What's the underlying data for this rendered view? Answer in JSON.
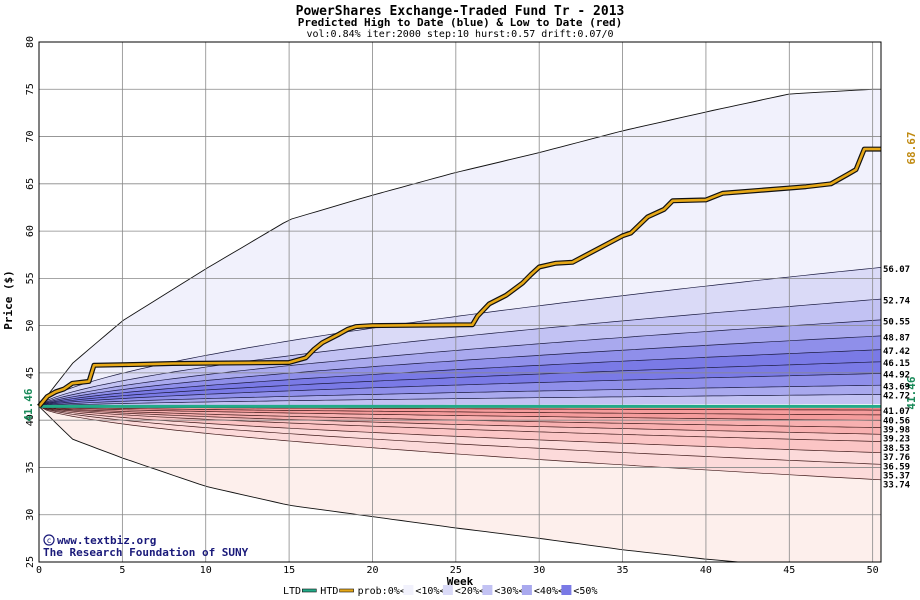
{
  "chart_data": {
    "type": "area",
    "title": "PowerShares Exchange-Traded Fund Tr - 2013",
    "subtitle": "Predicted High to Date (blue) &  Low to Date (red)",
    "params_line": "vol:0.84% iter:2000 step:10 hurst:0.57 drift:0.07/0",
    "xlabel": "Week",
    "ylabel": "Price ($)",
    "xlim": [
      0,
      50.5
    ],
    "ylim": [
      25,
      80
    ],
    "x_ticks": [
      0,
      5,
      10,
      15,
      20,
      25,
      30,
      35,
      40,
      45,
      50
    ],
    "y_ticks": [
      25,
      30,
      35,
      40,
      45,
      50,
      55,
      60,
      65,
      70,
      75,
      80
    ],
    "grid": true,
    "start_price": 41.46,
    "start_price_label": "41.46",
    "end_price_label": "41.46",
    "htd_end_label": "68.67",
    "credit_line1": "www.textbiz.org",
    "credit_line2": "The Research Foundation of SUNY",
    "band_colors": {
      "high": [
        "#f1f1fc",
        "#dadaf7",
        "#c2c2f3",
        "#a9a9ee",
        "#8f8fea",
        "#7a7ae6"
      ],
      "low": [
        "#fdefec",
        "#fcdada",
        "#fbc5c5",
        "#f8b0b0",
        "#f59c9c",
        "#f08787"
      ],
      "ltd_line": "#22aa88",
      "htd_line": "#e6a817"
    },
    "high_quantile_labels": [
      "56.07",
      "52.74",
      "50.55",
      "48.87",
      "47.42",
      "46.15",
      "44.92",
      "43.69",
      "42.72"
    ],
    "high_quantile_ends": [
      56.07,
      52.74,
      50.55,
      48.87,
      47.42,
      46.15,
      44.92,
      43.69,
      42.72
    ],
    "high_max_curve": {
      "x": [
        0,
        2,
        5,
        10,
        15,
        20,
        25,
        30,
        35,
        40,
        45,
        50,
        50.5
      ],
      "y": [
        41.46,
        46,
        50.5,
        56,
        61.2,
        63.8,
        66.2,
        68.3,
        70.6,
        72.6,
        74.5,
        75,
        75
      ]
    },
    "low_quantile_labels": [
      "41.07",
      "40.56",
      "39.98",
      "39.23",
      "38.53",
      "37.76",
      "36.59",
      "35.37",
      "33.74"
    ],
    "low_quantile_ends": [
      41.07,
      40.56,
      39.98,
      39.23,
      38.53,
      37.76,
      36.59,
      35.37,
      33.74
    ],
    "low_min_curve": {
      "x": [
        0,
        2,
        5,
        10,
        15,
        20,
        25,
        30,
        35,
        40,
        42,
        50.5
      ],
      "y": [
        41.46,
        38,
        36,
        33,
        31,
        29.8,
        28.6,
        27.5,
        26.3,
        25.3,
        25,
        25
      ]
    },
    "htd_series": {
      "name": "HTD",
      "x": [
        0,
        0.5,
        1,
        1.5,
        2,
        3,
        3.3,
        6,
        8,
        15,
        16,
        16.5,
        17,
        18,
        18.5,
        19,
        20,
        26,
        26.3,
        27,
        28,
        29,
        29.5,
        30,
        31,
        32,
        35,
        35.5,
        36.5,
        37.5,
        38,
        40,
        41,
        46,
        47.5,
        48.5,
        49,
        49.5,
        50.5
      ],
      "y": [
        41.46,
        42.5,
        43,
        43.3,
        43.9,
        44.1,
        45.8,
        45.9,
        46.0,
        46.1,
        46.6,
        47.5,
        48.2,
        49.1,
        49.6,
        49.9,
        50.0,
        50.1,
        51.0,
        52.3,
        53.2,
        54.5,
        55.4,
        56.2,
        56.6,
        56.7,
        59.5,
        59.8,
        61.5,
        62.3,
        63.2,
        63.3,
        64.0,
        64.7,
        65.0,
        66.0,
        66.5,
        68.67,
        68.67
      ]
    },
    "ltd_series": {
      "name": "LTD",
      "x": [
        0,
        50.5
      ],
      "y": [
        41.46,
        41.46
      ]
    },
    "legend": {
      "placement": "bottom",
      "items": [
        {
          "label": "LTD",
          "kind": "line",
          "color": "#22aa88"
        },
        {
          "label": "HTD",
          "kind": "line",
          "color": "#e6a817"
        },
        {
          "label": "prob:0%<",
          "kind": "box",
          "color": "#ffffff"
        },
        {
          "label": "<10%<",
          "kind": "box",
          "color": "#f1f1fc"
        },
        {
          "label": "<20%<",
          "kind": "box",
          "color": "#dadaf7"
        },
        {
          "label": "<30%<",
          "kind": "box",
          "color": "#c2c2f3"
        },
        {
          "label": "<40%<",
          "kind": "box",
          "color": "#a9a9ee"
        },
        {
          "label": "<50%",
          "kind": "box",
          "color": "#7a7ae6"
        }
      ]
    }
  }
}
